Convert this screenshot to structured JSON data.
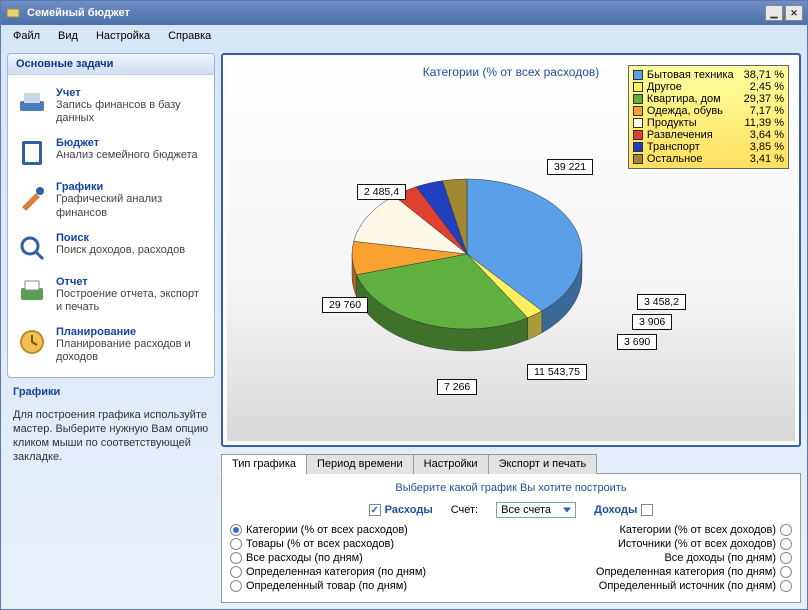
{
  "window": {
    "title": "Семейный бюджет"
  },
  "menu": [
    "Файл",
    "Вид",
    "Настройка",
    "Справка"
  ],
  "sidebar": {
    "header": "Основные задачи",
    "items": [
      {
        "title": "Учет",
        "desc": "Запись финансов в базу данных",
        "icon_color": "#3a7fc8"
      },
      {
        "title": "Бюджет",
        "desc": "Анализ семейного бюджета",
        "icon_color": "#2050a0"
      },
      {
        "title": "Графики",
        "desc": "Графический анализ финансов",
        "icon_color": "#c86e2a"
      },
      {
        "title": "Поиск",
        "desc": "Поиск доходов, расходов",
        "icon_color": "#2060c0"
      },
      {
        "title": "Отчет",
        "desc": "Построение отчета, экспорт и печать",
        "icon_color": "#30a040"
      },
      {
        "title": "Планирование",
        "desc": "Планирование расходов и доходов",
        "icon_color": "#e08030"
      }
    ],
    "help": {
      "title": "Графики",
      "body": "Для построения графика используйте мастер. Выберите нужную Вам опцию кликом мыши по соответствующей закладке."
    }
  },
  "chart": {
    "title": "Категории (% от всех расходов)",
    "type": "pie",
    "background_top": "#ffffff",
    "background_bottom": "#d8d8d8",
    "border_color": "#3a5fa5",
    "slices": [
      {
        "label": "Бытовая техника",
        "pct": 38.71,
        "value": "39 221",
        "color": "#5aa0e8"
      },
      {
        "label": "Другое",
        "pct": 2.45,
        "value": "2 485,4",
        "color": "#fff060"
      },
      {
        "label": "Квартира, дом",
        "pct": 29.37,
        "value": "29 760",
        "color": "#60b040"
      },
      {
        "label": "Одежда, обувь",
        "pct": 7.17,
        "value": "7 266",
        "color": "#f8a030"
      },
      {
        "label": "Продукты",
        "pct": 11.39,
        "value": "11 543,75",
        "color": "#fff8e8"
      },
      {
        "label": "Развлечения",
        "pct": 3.64,
        "value": "3 690",
        "color": "#e04030"
      },
      {
        "label": "Транспорт",
        "pct": 3.85,
        "value": "3 906",
        "color": "#2040c0"
      },
      {
        "label": "Остальное",
        "pct": 3.41,
        "value": "3 458,2",
        "color": "#a08830"
      }
    ],
    "legend": [
      {
        "label": "Бытовая техника",
        "pct": "38,71 %",
        "color": "#5aa0e8"
      },
      {
        "label": "Другое",
        "pct": "2,45 %",
        "color": "#fff060"
      },
      {
        "label": "Квартира, дом",
        "pct": "29,37 %",
        "color": "#60b040"
      },
      {
        "label": "Одежда, обувь",
        "pct": "7,17 %",
        "color": "#f8a030"
      },
      {
        "label": "Продукты",
        "pct": "11,39 %",
        "color": "#fff8e8"
      },
      {
        "label": "Развлечения",
        "pct": "3,64 %",
        "color": "#e04030"
      },
      {
        "label": "Транспорт",
        "pct": "3,85 %",
        "color": "#2040c0"
      },
      {
        "label": "Остальное",
        "pct": "3,41 %",
        "color": "#a08830"
      }
    ]
  },
  "tabs": {
    "items": [
      "Тип графика",
      "Период времени",
      "Настройки",
      "Экспорт и печать"
    ],
    "active": 0
  },
  "options": {
    "title": "Выберите какой график Вы хотите построить",
    "expenses_label": "Расходы",
    "expenses_checked": true,
    "income_label": "Доходы",
    "income_checked": false,
    "account_label": "Счет:",
    "account_value": "Все счета",
    "left": [
      {
        "label": "Категории (% от всех расходов)",
        "sel": true
      },
      {
        "label": "Товары (% от всех расходов)",
        "sel": false
      },
      {
        "label": "Все расходы (по дням)",
        "sel": false
      },
      {
        "label": "Определенная категория (по дням)",
        "sel": false
      },
      {
        "label": "Определенный товар (по дням)",
        "sel": false
      }
    ],
    "right": [
      {
        "label": "Категории (% от всех доходов)",
        "sel": false
      },
      {
        "label": "Источники (% от всех доходов)",
        "sel": false
      },
      {
        "label": "Все доходы (по дням)",
        "sel": false
      },
      {
        "label": "Определенная категория (по дням)",
        "sel": false
      },
      {
        "label": "Определенный источник (по дням)",
        "sel": false
      }
    ]
  }
}
